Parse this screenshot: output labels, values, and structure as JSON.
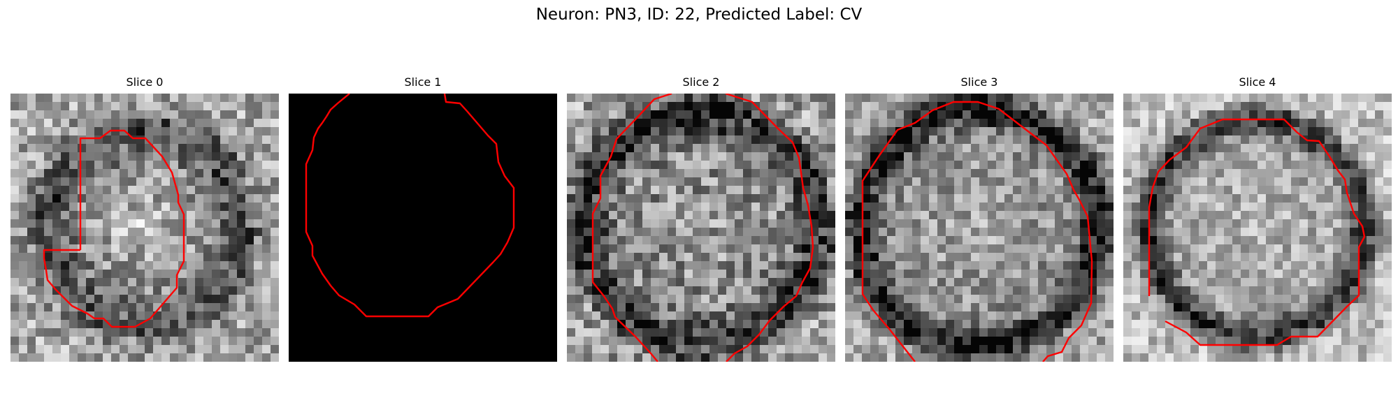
{
  "figure": {
    "title": "Neuron: PN3, ID: 22, Predicted Label: CV"
  },
  "panels": [
    {
      "title": "Slice 0",
      "image": "grayscale-em-slice",
      "seed": 11,
      "ring": 0.72,
      "ringWidth": 5.5,
      "base": 0.58,
      "noise": 0.5,
      "dark": 0.3,
      "innerBright": 0.18,
      "contour_color": "#ff0000"
    },
    {
      "title": "Slice 1",
      "image": "black-empty-slice",
      "blank": true,
      "contour_color": "#ff0000"
    },
    {
      "title": "Slice 2",
      "image": "grayscale-em-slice",
      "seed": 23,
      "ring": 0.86,
      "ringWidth": 4.5,
      "base": 0.55,
      "noise": 0.55,
      "dark": 0.45,
      "innerBright": 0.05,
      "contour_color": "#ff0000"
    },
    {
      "title": "Slice 3",
      "image": "grayscale-em-slice",
      "seed": 37,
      "ring": 0.88,
      "ringWidth": 4.0,
      "base": 0.58,
      "noise": 0.45,
      "dark": 0.55,
      "innerBright": 0.08,
      "contour_color": "#ff0000"
    },
    {
      "title": "Slice 4",
      "image": "grayscale-em-slice",
      "seed": 51,
      "ring": 0.8,
      "ringWidth": 3.5,
      "base": 0.66,
      "noise": 0.4,
      "dark": 0.5,
      "innerBright": 0.05,
      "contour_color": "#ff0000"
    }
  ]
}
